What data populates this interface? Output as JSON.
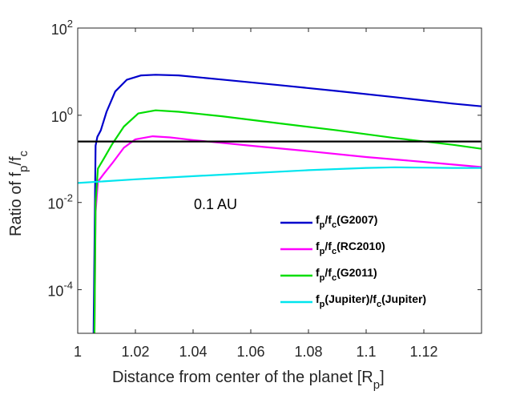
{
  "chart_data": {
    "type": "line",
    "title": "",
    "xlabel": {
      "main": "Distance from center of the planet [R",
      "sub": "p",
      "close": "]"
    },
    "ylabel": {
      "main": "Ratio of f",
      "sub1": "p",
      "mid": "/f",
      "sub2": "c"
    },
    "xlim": [
      1.0,
      1.14
    ],
    "ylim": [
      1e-05,
      100
    ],
    "yscale": "log",
    "grid": false,
    "legend_position": "bottom-right",
    "x_ticks": [
      {
        "value": 1.0,
        "label": "1"
      },
      {
        "value": 1.02,
        "label": "1.02"
      },
      {
        "value": 1.04,
        "label": "1.04"
      },
      {
        "value": 1.06,
        "label": "1.06"
      },
      {
        "value": 1.08,
        "label": "1.08"
      },
      {
        "value": 1.1,
        "label": "1.1"
      },
      {
        "value": 1.12,
        "label": "1.12"
      }
    ],
    "y_ticks": [
      {
        "value": 100,
        "base": "10",
        "exp": "2"
      },
      {
        "value": 1,
        "base": "10",
        "exp": "0"
      },
      {
        "value": 0.01,
        "base": "10",
        "exp": "-2"
      },
      {
        "value": 0.0001,
        "base": "10",
        "exp": "-4"
      }
    ],
    "annotation": "0.1 AU",
    "reference_line": {
      "y": 0.25,
      "color": "#000000"
    },
    "series": [
      {
        "name_parts": [
          "f",
          "p",
          "/f",
          "c",
          "(G2007)"
        ],
        "color": "#0000cc",
        "x": [
          1.0055,
          1.0062,
          1.0068,
          1.008,
          1.01,
          1.013,
          1.017,
          1.022,
          1.027,
          1.035,
          1.05,
          1.07,
          1.09,
          1.11,
          1.13,
          1.14
        ],
        "y": [
          1e-05,
          0.2,
          0.32,
          0.45,
          1.2,
          3.5,
          6.5,
          8.2,
          8.5,
          8.2,
          6.6,
          4.9,
          3.6,
          2.6,
          1.85,
          1.6
        ]
      },
      {
        "name_parts": [
          "f",
          "p",
          "/f",
          "c",
          "(RC2010)"
        ],
        "color": "#ff00ff",
        "x": [
          1.0058,
          1.0062,
          1.007,
          1.009,
          1.012,
          1.016,
          1.02,
          1.026,
          1.032,
          1.04,
          1.06,
          1.08,
          1.1,
          1.12,
          1.14
        ],
        "y": [
          1e-05,
          0.006,
          0.03,
          0.045,
          0.08,
          0.18,
          0.28,
          0.33,
          0.31,
          0.27,
          0.2,
          0.15,
          0.11,
          0.085,
          0.065
        ]
      },
      {
        "name_parts": [
          "f",
          "p",
          "/f",
          "c",
          "(G2011)"
        ],
        "color": "#00dd00",
        "x": [
          1.0058,
          1.0062,
          1.007,
          1.009,
          1.012,
          1.016,
          1.021,
          1.027,
          1.035,
          1.05,
          1.07,
          1.09,
          1.11,
          1.13,
          1.14
        ],
        "y": [
          1e-05,
          0.01,
          0.06,
          0.1,
          0.22,
          0.55,
          1.1,
          1.3,
          1.2,
          0.95,
          0.65,
          0.45,
          0.3,
          0.21,
          0.17
        ]
      },
      {
        "name_parts": [
          "f",
          "p",
          "(Jupiter)/f",
          "c",
          "(Jupiter)"
        ],
        "color": "#00e5ee",
        "x": [
          1.0,
          1.02,
          1.04,
          1.06,
          1.08,
          1.1,
          1.11,
          1.12,
          1.13,
          1.14
        ],
        "y": [
          0.028,
          0.034,
          0.04,
          0.047,
          0.055,
          0.062,
          0.064,
          0.063,
          0.062,
          0.062
        ]
      }
    ]
  }
}
